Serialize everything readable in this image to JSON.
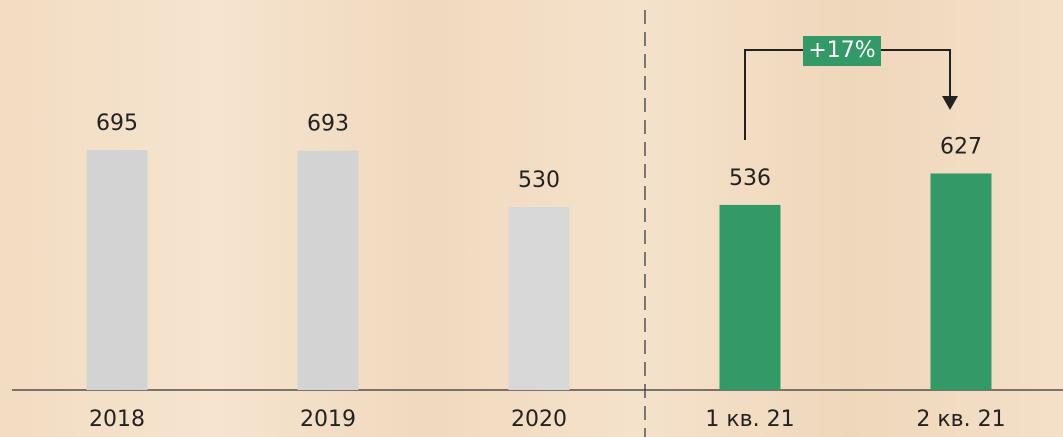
{
  "chart_data": {
    "type": "bar",
    "categories": [
      "2018",
      "2019",
      "2020",
      "1 кв. 21",
      "2 кв. 21"
    ],
    "values": [
      695,
      693,
      530,
      536,
      627
    ],
    "colors": [
      "#d3d3d3",
      "#d3d3d3",
      "#d8d8d8",
      "#339966",
      "#339966"
    ],
    "annotation": "+17%"
  }
}
